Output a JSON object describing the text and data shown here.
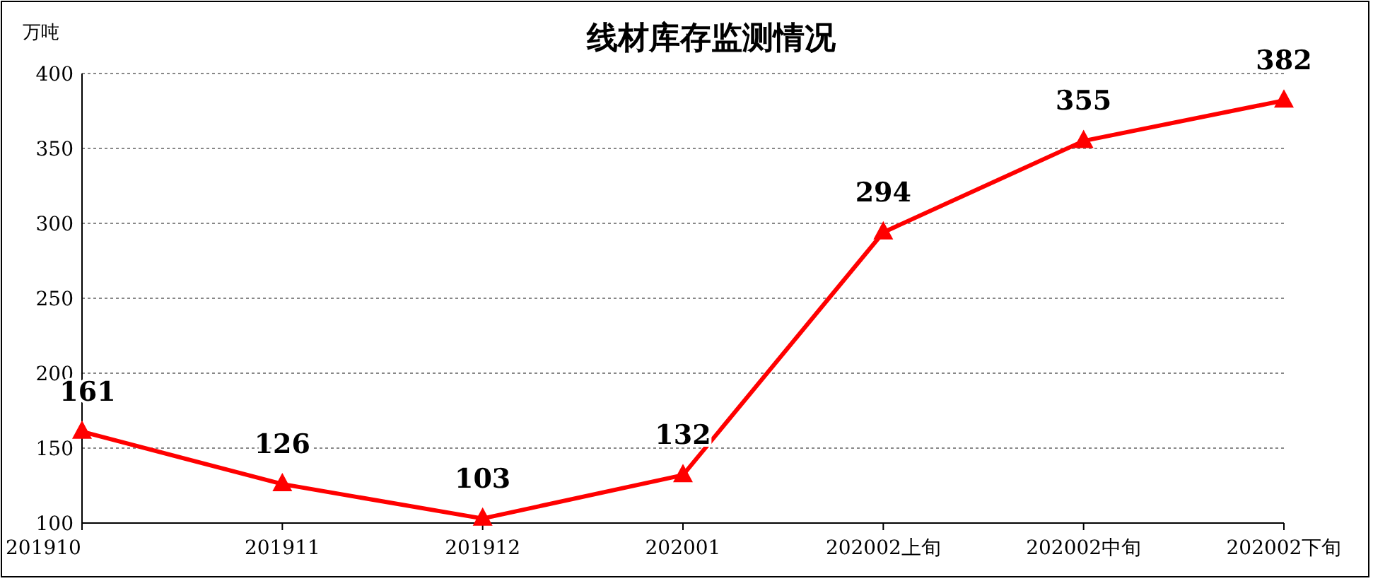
{
  "chart_data": {
    "type": "line",
    "title": "线材库存监测情况",
    "ylabel": "万吨",
    "categories": [
      "201910",
      "201911",
      "201912",
      "202001",
      "202002上旬",
      "202002中旬",
      "202002下旬"
    ],
    "series": [
      {
        "color": "#ff0000",
        "values": [
          161,
          126,
          103,
          132,
          294,
          355,
          382
        ]
      }
    ],
    "ylim": [
      100,
      400
    ],
    "yticks": [
      100,
      150,
      200,
      250,
      300,
      350,
      400
    ],
    "grid": "y",
    "marker": "triangle",
    "data_labels": true
  }
}
